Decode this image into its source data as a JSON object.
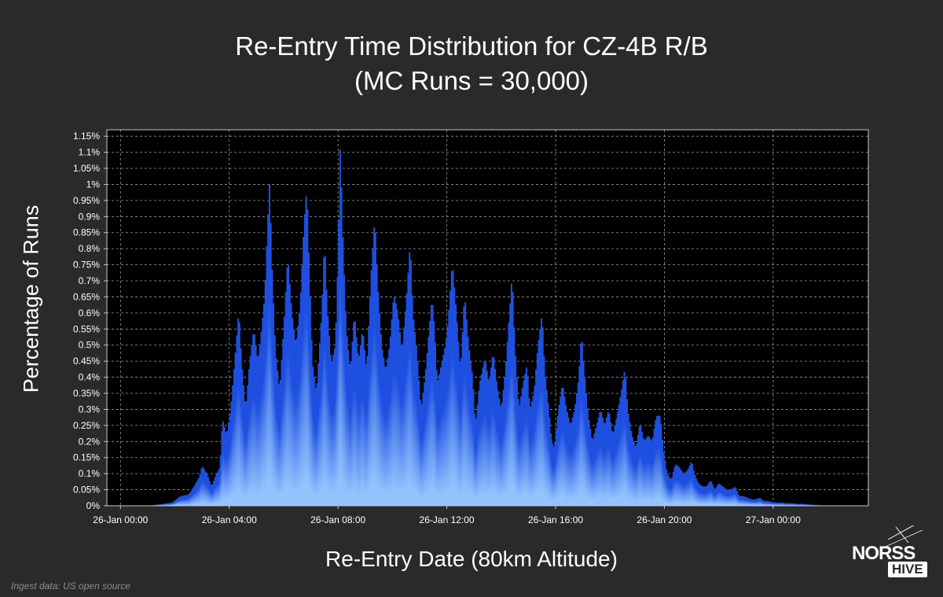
{
  "chart_data": {
    "type": "bar",
    "title": "Re-Entry Time Distribution for CZ-4B R/B",
    "subtitle": "(MC Runs = 30,000)",
    "xlabel": "Re-Entry Date (80km Altitude)",
    "ylabel": "Percentage of Runs",
    "x_ticks": [
      "26-Jan 00:00",
      "26-Jan 04:00",
      "26-Jan 08:00",
      "26-Jan 12:00",
      "26-Jan 16:00",
      "26-Jan 20:00",
      "27-Jan 00:00"
    ],
    "y_ticks": [
      "0%",
      "0.05%",
      "0.1%",
      "0.15%",
      "0.2%",
      "0.25%",
      "0.3%",
      "0.35%",
      "0.4%",
      "0.45%",
      "0.5%",
      "0.55%",
      "0.6%",
      "0.65%",
      "0.7%",
      "0.75%",
      "0.8%",
      "0.85%",
      "0.9%",
      "0.95%",
      "1%",
      "1.05%",
      "1.1%",
      "1.15%"
    ],
    "xlim_hours": [
      -0.5,
      27.5
    ],
    "ylim": [
      0,
      1.17
    ],
    "grid": true,
    "bar_colors": {
      "top": "#1e4fe0",
      "bottom": "#93c4ff"
    },
    "profile": [
      {
        "x": 1.0,
        "y": 0.0
      },
      {
        "x": 1.5,
        "y": 0.005
      },
      {
        "x": 1.9,
        "y": 0.01
      },
      {
        "x": 2.2,
        "y": 0.03
      },
      {
        "x": 2.5,
        "y": 0.035
      },
      {
        "x": 2.7,
        "y": 0.06
      },
      {
        "x": 2.9,
        "y": 0.09
      },
      {
        "x": 3.0,
        "y": 0.125
      },
      {
        "x": 3.2,
        "y": 0.095
      },
      {
        "x": 3.35,
        "y": 0.06
      },
      {
        "x": 3.5,
        "y": 0.095
      },
      {
        "x": 3.65,
        "y": 0.12
      },
      {
        "x": 3.75,
        "y": 0.27
      },
      {
        "x": 3.9,
        "y": 0.22
      },
      {
        "x": 4.05,
        "y": 0.3
      },
      {
        "x": 4.2,
        "y": 0.45
      },
      {
        "x": 4.35,
        "y": 0.61
      },
      {
        "x": 4.45,
        "y": 0.45
      },
      {
        "x": 4.6,
        "y": 0.3
      },
      {
        "x": 4.75,
        "y": 0.45
      },
      {
        "x": 4.9,
        "y": 0.55
      },
      {
        "x": 5.05,
        "y": 0.45
      },
      {
        "x": 5.15,
        "y": 0.52
      },
      {
        "x": 5.3,
        "y": 0.65
      },
      {
        "x": 5.4,
        "y": 0.86
      },
      {
        "x": 5.48,
        "y": 1.01
      },
      {
        "x": 5.58,
        "y": 0.72
      },
      {
        "x": 5.7,
        "y": 0.48
      },
      {
        "x": 5.85,
        "y": 0.36
      },
      {
        "x": 6.0,
        "y": 0.55
      },
      {
        "x": 6.15,
        "y": 0.78
      },
      {
        "x": 6.3,
        "y": 0.6
      },
      {
        "x": 6.45,
        "y": 0.5
      },
      {
        "x": 6.6,
        "y": 0.62
      },
      {
        "x": 6.75,
        "y": 0.88
      },
      {
        "x": 6.85,
        "y": 0.99
      },
      {
        "x": 6.95,
        "y": 0.72
      },
      {
        "x": 7.05,
        "y": 0.45
      },
      {
        "x": 7.2,
        "y": 0.35
      },
      {
        "x": 7.4,
        "y": 0.6
      },
      {
        "x": 7.5,
        "y": 0.83
      },
      {
        "x": 7.6,
        "y": 0.62
      },
      {
        "x": 7.75,
        "y": 0.44
      },
      {
        "x": 7.9,
        "y": 0.5
      },
      {
        "x": 8.0,
        "y": 0.78
      },
      {
        "x": 8.08,
        "y": 1.13
      },
      {
        "x": 8.18,
        "y": 0.82
      },
      {
        "x": 8.3,
        "y": 0.55
      },
      {
        "x": 8.45,
        "y": 0.42
      },
      {
        "x": 8.6,
        "y": 0.6
      },
      {
        "x": 8.75,
        "y": 0.45
      },
      {
        "x": 8.9,
        "y": 0.55
      },
      {
        "x": 9.05,
        "y": 0.42
      },
      {
        "x": 9.2,
        "y": 0.7
      },
      {
        "x": 9.35,
        "y": 0.9
      },
      {
        "x": 9.45,
        "y": 0.7
      },
      {
        "x": 9.6,
        "y": 0.5
      },
      {
        "x": 9.75,
        "y": 0.42
      },
      {
        "x": 9.9,
        "y": 0.5
      },
      {
        "x": 10.05,
        "y": 0.66
      },
      {
        "x": 10.2,
        "y": 0.6
      },
      {
        "x": 10.35,
        "y": 0.48
      },
      {
        "x": 10.5,
        "y": 0.63
      },
      {
        "x": 10.65,
        "y": 0.82
      },
      {
        "x": 10.75,
        "y": 0.6
      },
      {
        "x": 10.9,
        "y": 0.48
      },
      {
        "x": 11.05,
        "y": 0.3
      },
      {
        "x": 11.2,
        "y": 0.4
      },
      {
        "x": 11.35,
        "y": 0.55
      },
      {
        "x": 11.45,
        "y": 0.65
      },
      {
        "x": 11.55,
        "y": 0.55
      },
      {
        "x": 11.65,
        "y": 0.38
      },
      {
        "x": 11.8,
        "y": 0.44
      },
      {
        "x": 11.95,
        "y": 0.5
      },
      {
        "x": 12.05,
        "y": 0.58
      },
      {
        "x": 12.2,
        "y": 0.76
      },
      {
        "x": 12.35,
        "y": 0.6
      },
      {
        "x": 12.5,
        "y": 0.42
      },
      {
        "x": 12.65,
        "y": 0.66
      },
      {
        "x": 12.8,
        "y": 0.5
      },
      {
        "x": 12.95,
        "y": 0.4
      },
      {
        "x": 13.05,
        "y": 0.25
      },
      {
        "x": 13.2,
        "y": 0.38
      },
      {
        "x": 13.4,
        "y": 0.46
      },
      {
        "x": 13.55,
        "y": 0.38
      },
      {
        "x": 13.7,
        "y": 0.48
      },
      {
        "x": 13.85,
        "y": 0.37
      },
      {
        "x": 14.0,
        "y": 0.3
      },
      {
        "x": 14.15,
        "y": 0.42
      },
      {
        "x": 14.3,
        "y": 0.6
      },
      {
        "x": 14.4,
        "y": 0.72
      },
      {
        "x": 14.5,
        "y": 0.5
      },
      {
        "x": 14.65,
        "y": 0.3
      },
      {
        "x": 14.8,
        "y": 0.38
      },
      {
        "x": 14.95,
        "y": 0.44
      },
      {
        "x": 15.05,
        "y": 0.3
      },
      {
        "x": 15.2,
        "y": 0.35
      },
      {
        "x": 15.35,
        "y": 0.5
      },
      {
        "x": 15.5,
        "y": 0.6
      },
      {
        "x": 15.6,
        "y": 0.42
      },
      {
        "x": 15.75,
        "y": 0.3
      },
      {
        "x": 15.85,
        "y": 0.2
      },
      {
        "x": 15.95,
        "y": 0.18
      },
      {
        "x": 16.1,
        "y": 0.3
      },
      {
        "x": 16.25,
        "y": 0.38
      },
      {
        "x": 16.4,
        "y": 0.3
      },
      {
        "x": 16.55,
        "y": 0.25
      },
      {
        "x": 16.7,
        "y": 0.3
      },
      {
        "x": 16.85,
        "y": 0.4
      },
      {
        "x": 16.95,
        "y": 0.54
      },
      {
        "x": 17.05,
        "y": 0.42
      },
      {
        "x": 17.2,
        "y": 0.28
      },
      {
        "x": 17.35,
        "y": 0.2
      },
      {
        "x": 17.5,
        "y": 0.25
      },
      {
        "x": 17.65,
        "y": 0.3
      },
      {
        "x": 17.8,
        "y": 0.25
      },
      {
        "x": 17.95,
        "y": 0.3
      },
      {
        "x": 18.1,
        "y": 0.22
      },
      {
        "x": 18.25,
        "y": 0.28
      },
      {
        "x": 18.4,
        "y": 0.35
      },
      {
        "x": 18.55,
        "y": 0.43
      },
      {
        "x": 18.65,
        "y": 0.3
      },
      {
        "x": 18.8,
        "y": 0.22
      },
      {
        "x": 18.95,
        "y": 0.18
      },
      {
        "x": 19.1,
        "y": 0.26
      },
      {
        "x": 19.25,
        "y": 0.2
      },
      {
        "x": 19.4,
        "y": 0.22
      },
      {
        "x": 19.55,
        "y": 0.2
      },
      {
        "x": 19.7,
        "y": 0.28
      },
      {
        "x": 19.85,
        "y": 0.28
      },
      {
        "x": 19.95,
        "y": 0.18
      },
      {
        "x": 20.1,
        "y": 0.1
      },
      {
        "x": 20.25,
        "y": 0.08
      },
      {
        "x": 20.4,
        "y": 0.13
      },
      {
        "x": 20.55,
        "y": 0.12
      },
      {
        "x": 20.7,
        "y": 0.1
      },
      {
        "x": 20.85,
        "y": 0.11
      },
      {
        "x": 21.0,
        "y": 0.14
      },
      {
        "x": 21.1,
        "y": 0.1
      },
      {
        "x": 21.25,
        "y": 0.07
      },
      {
        "x": 21.4,
        "y": 0.06
      },
      {
        "x": 21.55,
        "y": 0.06
      },
      {
        "x": 21.7,
        "y": 0.08
      },
      {
        "x": 21.85,
        "y": 0.05
      },
      {
        "x": 22.0,
        "y": 0.07
      },
      {
        "x": 22.15,
        "y": 0.06
      },
      {
        "x": 22.3,
        "y": 0.05
      },
      {
        "x": 22.45,
        "y": 0.05
      },
      {
        "x": 22.6,
        "y": 0.06
      },
      {
        "x": 22.75,
        "y": 0.03
      },
      {
        "x": 22.9,
        "y": 0.03
      },
      {
        "x": 23.05,
        "y": 0.025
      },
      {
        "x": 23.2,
        "y": 0.02
      },
      {
        "x": 23.35,
        "y": 0.02
      },
      {
        "x": 23.5,
        "y": 0.025
      },
      {
        "x": 23.65,
        "y": 0.015
      },
      {
        "x": 23.8,
        "y": 0.015
      },
      {
        "x": 23.95,
        "y": 0.012
      },
      {
        "x": 24.1,
        "y": 0.01
      },
      {
        "x": 24.3,
        "y": 0.01
      },
      {
        "x": 24.5,
        "y": 0.008
      },
      {
        "x": 24.7,
        "y": 0.008
      },
      {
        "x": 24.9,
        "y": 0.006
      },
      {
        "x": 25.1,
        "y": 0.006
      },
      {
        "x": 25.3,
        "y": 0.004
      },
      {
        "x": 25.5,
        "y": 0.003
      },
      {
        "x": 25.8,
        "y": 0.001
      },
      {
        "x": 26.0,
        "y": 0.0
      }
    ]
  },
  "source": "Ingest data: US open source",
  "logo": {
    "line1": "NORSS",
    "line2": "HIVE"
  }
}
